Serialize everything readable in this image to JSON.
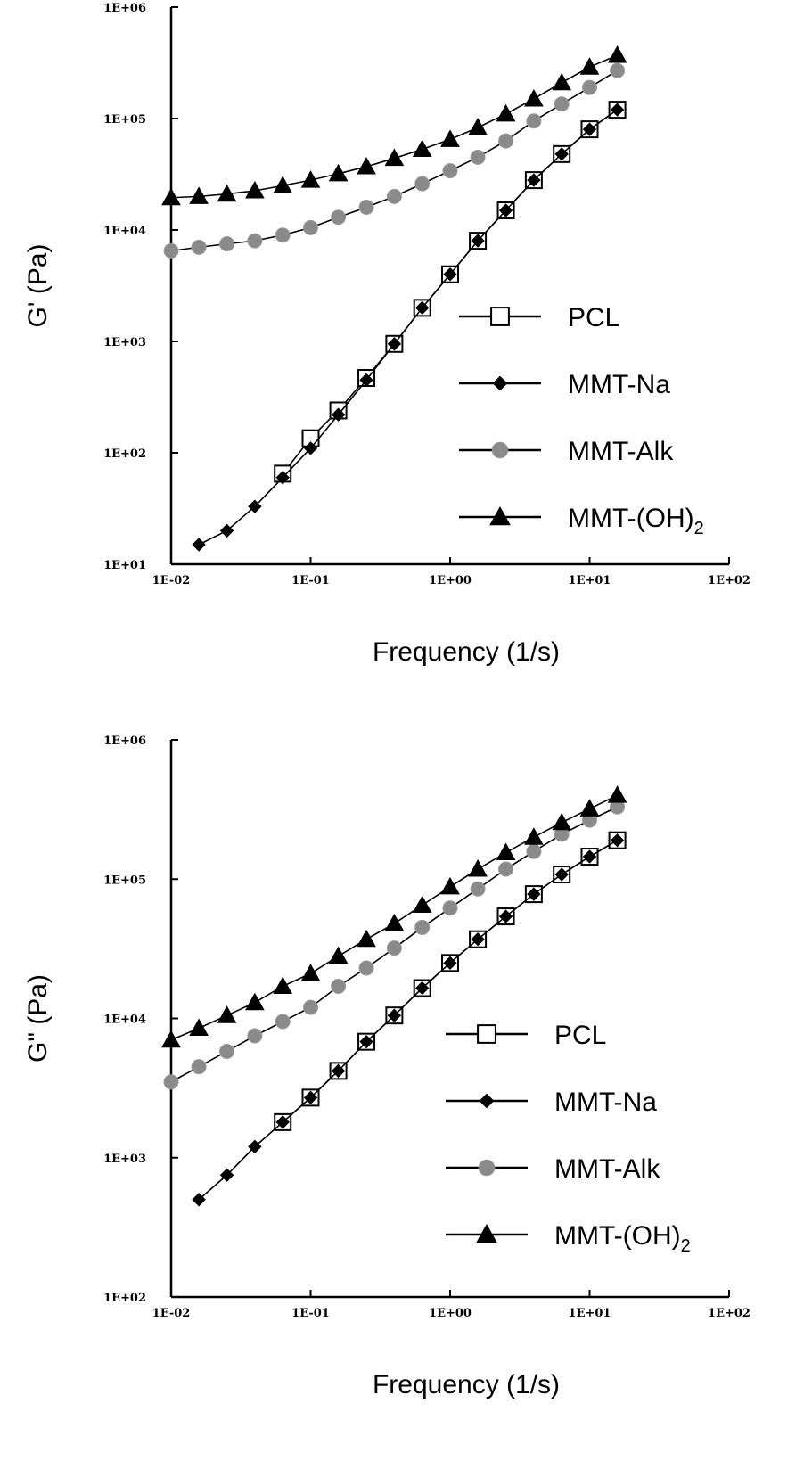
{
  "chart_data": [
    {
      "type": "line",
      "scale": "log-log",
      "ylabel": "G' (Pa)",
      "xlabel": "Frequency (1/s)",
      "xlim": [
        0.01,
        100
      ],
      "ylim": [
        10,
        1000000
      ],
      "x_ticks": [
        "1E-02",
        "1E-01",
        "1E+00",
        "1E+01",
        "1E+02"
      ],
      "y_ticks": [
        "1E+01",
        "1E+02",
        "1E+03",
        "1E+04",
        "1E+05",
        "1E+06"
      ],
      "grid": false,
      "legend_position": "center-right",
      "series": [
        {
          "name": "PCL",
          "marker": "open-square",
          "color": "#000000",
          "x": [
            0.0631,
            0.1,
            0.158,
            0.251,
            0.398,
            0.631,
            1.0,
            1.58,
            2.51,
            3.98,
            6.31,
            10.0,
            15.8
          ],
          "y": [
            65,
            135,
            240,
            470,
            950,
            2000,
            4000,
            8000,
            15000,
            28000,
            48000,
            80000,
            120000
          ]
        },
        {
          "name": "MMT-Na",
          "marker": "filled-diamond",
          "color": "#000000",
          "x": [
            0.0158,
            0.0251,
            0.0398,
            0.0631,
            0.1,
            0.158,
            0.251,
            0.398,
            0.631,
            1.0,
            1.58,
            2.51,
            3.98,
            6.31,
            10.0,
            15.8
          ],
          "y": [
            15,
            20,
            33,
            60,
            110,
            220,
            450,
            950,
            2000,
            4000,
            8000,
            15000,
            28000,
            48000,
            80000,
            120000
          ]
        },
        {
          "name": "MMT-Alk",
          "marker": "filled-circle",
          "color": "#8a8a8a",
          "x": [
            0.01,
            0.0158,
            0.0251,
            0.0398,
            0.0631,
            0.1,
            0.158,
            0.251,
            0.398,
            0.631,
            1.0,
            1.58,
            2.51,
            3.98,
            6.31,
            10.0,
            15.8
          ],
          "y": [
            6500,
            7000,
            7500,
            8000,
            9000,
            10500,
            13000,
            16000,
            20000,
            26000,
            34000,
            45000,
            63000,
            95000,
            135000,
            190000,
            270000
          ]
        },
        {
          "name": "MMT-(OH)",
          "name_subscript": "2",
          "marker": "filled-triangle",
          "color": "#000000",
          "x": [
            0.01,
            0.0158,
            0.0251,
            0.0398,
            0.0631,
            0.1,
            0.158,
            0.251,
            0.398,
            0.631,
            1.0,
            1.58,
            2.51,
            3.98,
            6.31,
            10.0,
            15.8
          ],
          "y": [
            19500,
            20000,
            21000,
            22500,
            25000,
            28000,
            32000,
            37000,
            44000,
            53000,
            65000,
            83000,
            110000,
            150000,
            210000,
            290000,
            370000
          ]
        }
      ]
    },
    {
      "type": "line",
      "scale": "log-log",
      "ylabel": "G\" (Pa)",
      "xlabel": "Frequency (1/s)",
      "xlim": [
        0.01,
        100
      ],
      "ylim": [
        100,
        1000000
      ],
      "x_ticks": [
        "1E-02",
        "1E-01",
        "1E+00",
        "1E+01",
        "1E+02"
      ],
      "y_ticks": [
        "1E+02",
        "1E+03",
        "1E+04",
        "1E+05",
        "1E+06"
      ],
      "grid": false,
      "legend_position": "center-right",
      "series": [
        {
          "name": "PCL",
          "marker": "open-square",
          "color": "#000000",
          "x": [
            0.0631,
            0.1,
            0.158,
            0.251,
            0.398,
            0.631,
            1.0,
            1.58,
            2.51,
            3.98,
            6.31,
            10.0,
            15.8
          ],
          "y": [
            1800,
            2700,
            4200,
            6800,
            10500,
            16500,
            25000,
            37000,
            54000,
            78000,
            108000,
            145000,
            190000
          ]
        },
        {
          "name": "MMT-Na",
          "marker": "filled-diamond",
          "color": "#000000",
          "x": [
            0.0158,
            0.0251,
            0.0398,
            0.0631,
            0.1,
            0.158,
            0.251,
            0.398,
            0.631,
            1.0,
            1.58,
            2.51,
            3.98,
            6.31,
            10.0,
            15.8
          ],
          "y": [
            500,
            750,
            1200,
            1800,
            2700,
            4200,
            6800,
            10500,
            16500,
            25000,
            37000,
            54000,
            78000,
            108000,
            145000,
            190000
          ]
        },
        {
          "name": "MMT-Alk",
          "marker": "filled-circle",
          "color": "#8a8a8a",
          "x": [
            0.01,
            0.0158,
            0.0251,
            0.0398,
            0.0631,
            0.1,
            0.158,
            0.251,
            0.398,
            0.631,
            1.0,
            1.58,
            2.51,
            3.98,
            6.31,
            10.0,
            15.8
          ],
          "y": [
            3500,
            4500,
            5800,
            7500,
            9500,
            12000,
            17000,
            23000,
            32000,
            45000,
            62000,
            85000,
            118000,
            158000,
            210000,
            265000,
            330000
          ]
        },
        {
          "name": "MMT-(OH)",
          "name_subscript": "2",
          "marker": "filled-triangle",
          "color": "#000000",
          "x": [
            0.01,
            0.0158,
            0.0251,
            0.0398,
            0.0631,
            0.1,
            0.158,
            0.251,
            0.398,
            0.631,
            1.0,
            1.58,
            2.51,
            3.98,
            6.31,
            10.0,
            15.8
          ],
          "y": [
            7000,
            8500,
            10500,
            13000,
            17000,
            21000,
            28000,
            37000,
            48000,
            65000,
            88000,
            118000,
            155000,
            200000,
            255000,
            320000,
            400000
          ]
        }
      ]
    }
  ]
}
